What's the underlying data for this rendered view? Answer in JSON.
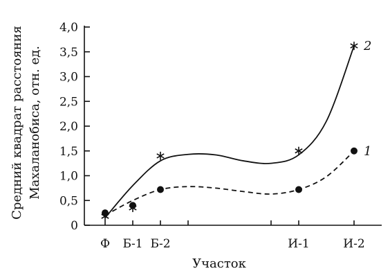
{
  "chart_data": {
    "type": "line",
    "xlabel": "Участок",
    "ylabel_line1": "Средний квадрат расстояния",
    "ylabel_line2": "Махаланобиса,  отн. ед.",
    "ylim": [
      0,
      4.0
    ],
    "yticks": [
      "0",
      "0,5",
      "1,0",
      "1,5",
      "2,0",
      "2,5",
      "3,0",
      "3,5",
      "4,0"
    ],
    "ytick_values": [
      0,
      0.5,
      1.0,
      1.5,
      2.0,
      2.5,
      3.0,
      3.5,
      4.0
    ],
    "categories": [
      "Ф",
      "Б-1",
      "Б-2",
      "И-1",
      "И-2"
    ],
    "category_positions": [
      0.0,
      0.2,
      0.4,
      1.4,
      1.8
    ],
    "x_range": [
      -0.15,
      2.0
    ],
    "extra_xticks": [
      0.6,
      1.2
    ],
    "series": [
      {
        "name": "2",
        "marker": "star",
        "line": "solid",
        "points": [
          {
            "x": 0.0,
            "y": 0.18
          },
          {
            "x": 0.2,
            "y": 0.35
          },
          {
            "x": 0.4,
            "y": 1.4
          },
          {
            "x": 1.4,
            "y": 1.5
          },
          {
            "x": 1.8,
            "y": 3.62
          }
        ],
        "curve": [
          {
            "x": 0.0,
            "y": 0.15
          },
          {
            "x": 0.2,
            "y": 0.8
          },
          {
            "x": 0.4,
            "y": 1.3
          },
          {
            "x": 0.6,
            "y": 1.43
          },
          {
            "x": 0.8,
            "y": 1.42
          },
          {
            "x": 1.0,
            "y": 1.3
          },
          {
            "x": 1.2,
            "y": 1.25
          },
          {
            "x": 1.4,
            "y": 1.42
          },
          {
            "x": 1.6,
            "y": 2.1
          },
          {
            "x": 1.8,
            "y": 3.62
          }
        ]
      },
      {
        "name": "1",
        "marker": "dot",
        "line": "dashed",
        "points": [
          {
            "x": 0.0,
            "y": 0.25
          },
          {
            "x": 0.2,
            "y": 0.4
          },
          {
            "x": 0.4,
            "y": 0.72
          },
          {
            "x": 1.4,
            "y": 0.72
          },
          {
            "x": 1.8,
            "y": 1.5
          }
        ],
        "curve": [
          {
            "x": 0.0,
            "y": 0.2
          },
          {
            "x": 0.2,
            "y": 0.5
          },
          {
            "x": 0.4,
            "y": 0.72
          },
          {
            "x": 0.6,
            "y": 0.78
          },
          {
            "x": 0.8,
            "y": 0.75
          },
          {
            "x": 1.0,
            "y": 0.68
          },
          {
            "x": 1.2,
            "y": 0.63
          },
          {
            "x": 1.4,
            "y": 0.72
          },
          {
            "x": 1.6,
            "y": 0.98
          },
          {
            "x": 1.8,
            "y": 1.5
          }
        ]
      }
    ]
  }
}
